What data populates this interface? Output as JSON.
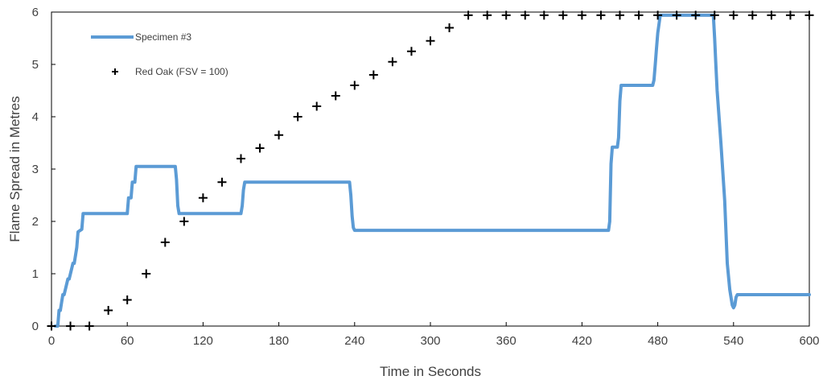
{
  "chart_data": {
    "type": "line",
    "xlabel": "Time in Seconds",
    "ylabel": "Flame Spread in Metres",
    "xlim": [
      0,
      600
    ],
    "ylim": [
      0,
      6
    ],
    "xticks": [
      0,
      60,
      120,
      180,
      240,
      300,
      360,
      420,
      480,
      540,
      600
    ],
    "yticks": [
      0,
      1,
      2,
      3,
      4,
      5,
      6
    ],
    "grid": false,
    "legend_position": "top-left",
    "series": [
      {
        "name": "Specimen #3",
        "kind": "line",
        "color": "#5b9bd5",
        "x": [
          3,
          5,
          6,
          7,
          9,
          10,
          13,
          14,
          17,
          18,
          20,
          21,
          24,
          25,
          27,
          28,
          60,
          61,
          63,
          64,
          66,
          67,
          98,
          99,
          100,
          101,
          102,
          150,
          151,
          152,
          153,
          154,
          155,
          236,
          237,
          238,
          239,
          240,
          441,
          442,
          443,
          444,
          448,
          449,
          450,
          451,
          453,
          454,
          476,
          477,
          478,
          479,
          480,
          482,
          524,
          525,
          526,
          527,
          530,
          533,
          535,
          537,
          539,
          540,
          541,
          542,
          543,
          600
        ],
        "values": [
          0,
          0,
          0.3,
          0.3,
          0.6,
          0.6,
          0.9,
          0.9,
          1.2,
          1.2,
          1.5,
          1.8,
          1.85,
          2.15,
          2.15,
          2.15,
          2.15,
          2.45,
          2.45,
          2.75,
          2.75,
          3.05,
          3.05,
          2.8,
          2.3,
          2.15,
          2.15,
          2.15,
          2.3,
          2.6,
          2.75,
          2.75,
          2.75,
          2.75,
          2.5,
          2.1,
          1.88,
          1.83,
          1.83,
          2.0,
          3.1,
          3.42,
          3.42,
          3.6,
          4.3,
          4.6,
          4.6,
          4.6,
          4.6,
          4.7,
          5.0,
          5.3,
          5.6,
          5.94,
          5.94,
          5.5,
          5.0,
          4.5,
          3.5,
          2.4,
          1.2,
          0.7,
          0.4,
          0.35,
          0.4,
          0.55,
          0.6,
          0.6
        ]
      },
      {
        "name": "Red Oak (FSV = 100)",
        "kind": "scatter",
        "marker": "plus",
        "color": "#000000",
        "x": [
          0,
          15,
          30,
          45,
          60,
          75,
          90,
          105,
          120,
          135,
          150,
          165,
          180,
          195,
          210,
          225,
          240,
          255,
          270,
          285,
          300,
          315,
          330,
          345,
          360,
          375,
          390,
          405,
          420,
          435,
          450,
          465,
          480,
          495,
          510,
          525,
          540,
          555,
          570,
          585,
          600
        ],
        "values": [
          0,
          0,
          0,
          0.3,
          0.5,
          1.0,
          1.6,
          2.0,
          2.45,
          2.75,
          3.2,
          3.4,
          3.65,
          4.0,
          4.2,
          4.4,
          4.6,
          4.8,
          5.05,
          5.25,
          5.45,
          5.7,
          5.94,
          5.94,
          5.94,
          5.94,
          5.94,
          5.94,
          5.94,
          5.94,
          5.94,
          5.94,
          5.94,
          5.94,
          5.94,
          5.94,
          5.94,
          5.94,
          5.94,
          5.94,
          5.94
        ]
      }
    ]
  }
}
